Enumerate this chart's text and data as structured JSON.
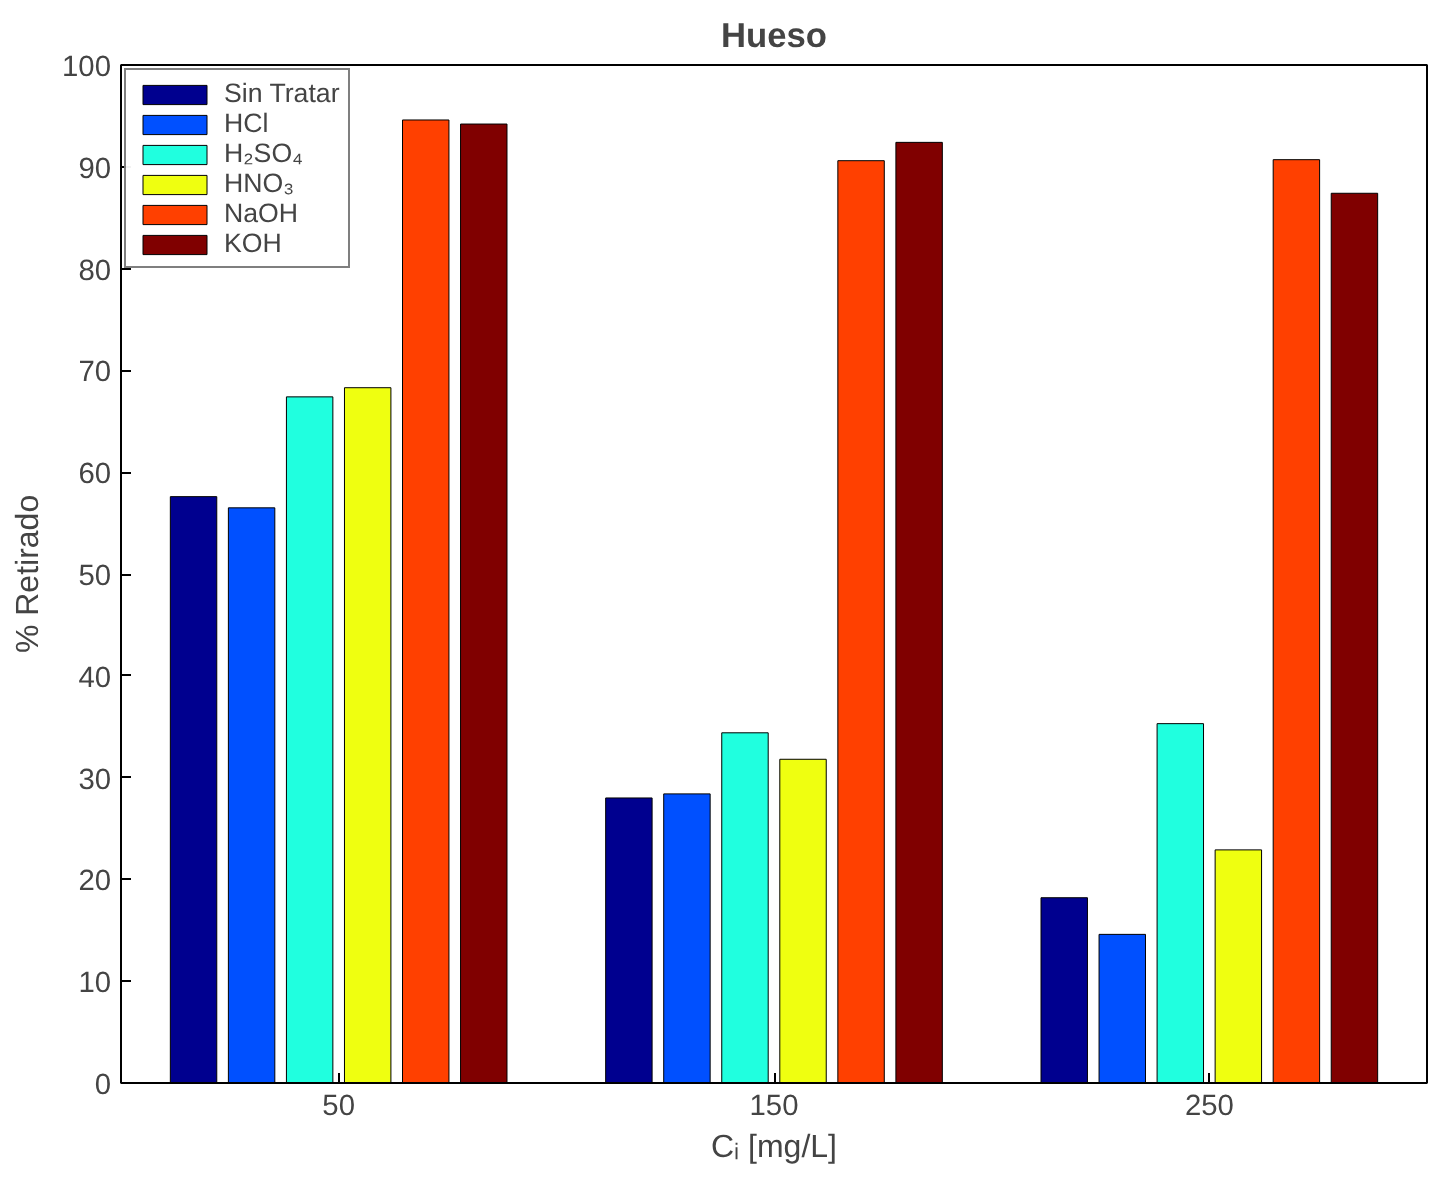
{
  "chart_data": {
    "type": "bar",
    "title": "Hueso",
    "xlabel": "Cᵢ [mg/L]",
    "ylabel": "% Retirado",
    "categories": [
      "50",
      "150",
      "250"
    ],
    "series": [
      {
        "name": "Sin Tratar",
        "color": "#00008f",
        "values": [
          57.6,
          28.0,
          18.2
        ]
      },
      {
        "name": "HCl",
        "color": "#0050ff",
        "values": [
          56.5,
          28.4,
          14.6
        ]
      },
      {
        "name": "H₂SO₄",
        "color": "#20ffdf",
        "values": [
          67.4,
          34.4,
          35.3
        ]
      },
      {
        "name": "HNO₃",
        "color": "#efff10",
        "values": [
          68.3,
          31.8,
          22.9
        ]
      },
      {
        "name": "NaOH",
        "color": "#ff4000",
        "values": [
          94.6,
          90.6,
          90.7
        ]
      },
      {
        "name": "KOH",
        "color": "#800000",
        "values": [
          94.2,
          92.4,
          87.4
        ]
      }
    ],
    "ylim": [
      0,
      100
    ],
    "yticks": [
      0,
      10,
      20,
      30,
      40,
      50,
      60,
      70,
      80,
      90,
      100
    ],
    "legend": "top left",
    "grid": false
  }
}
